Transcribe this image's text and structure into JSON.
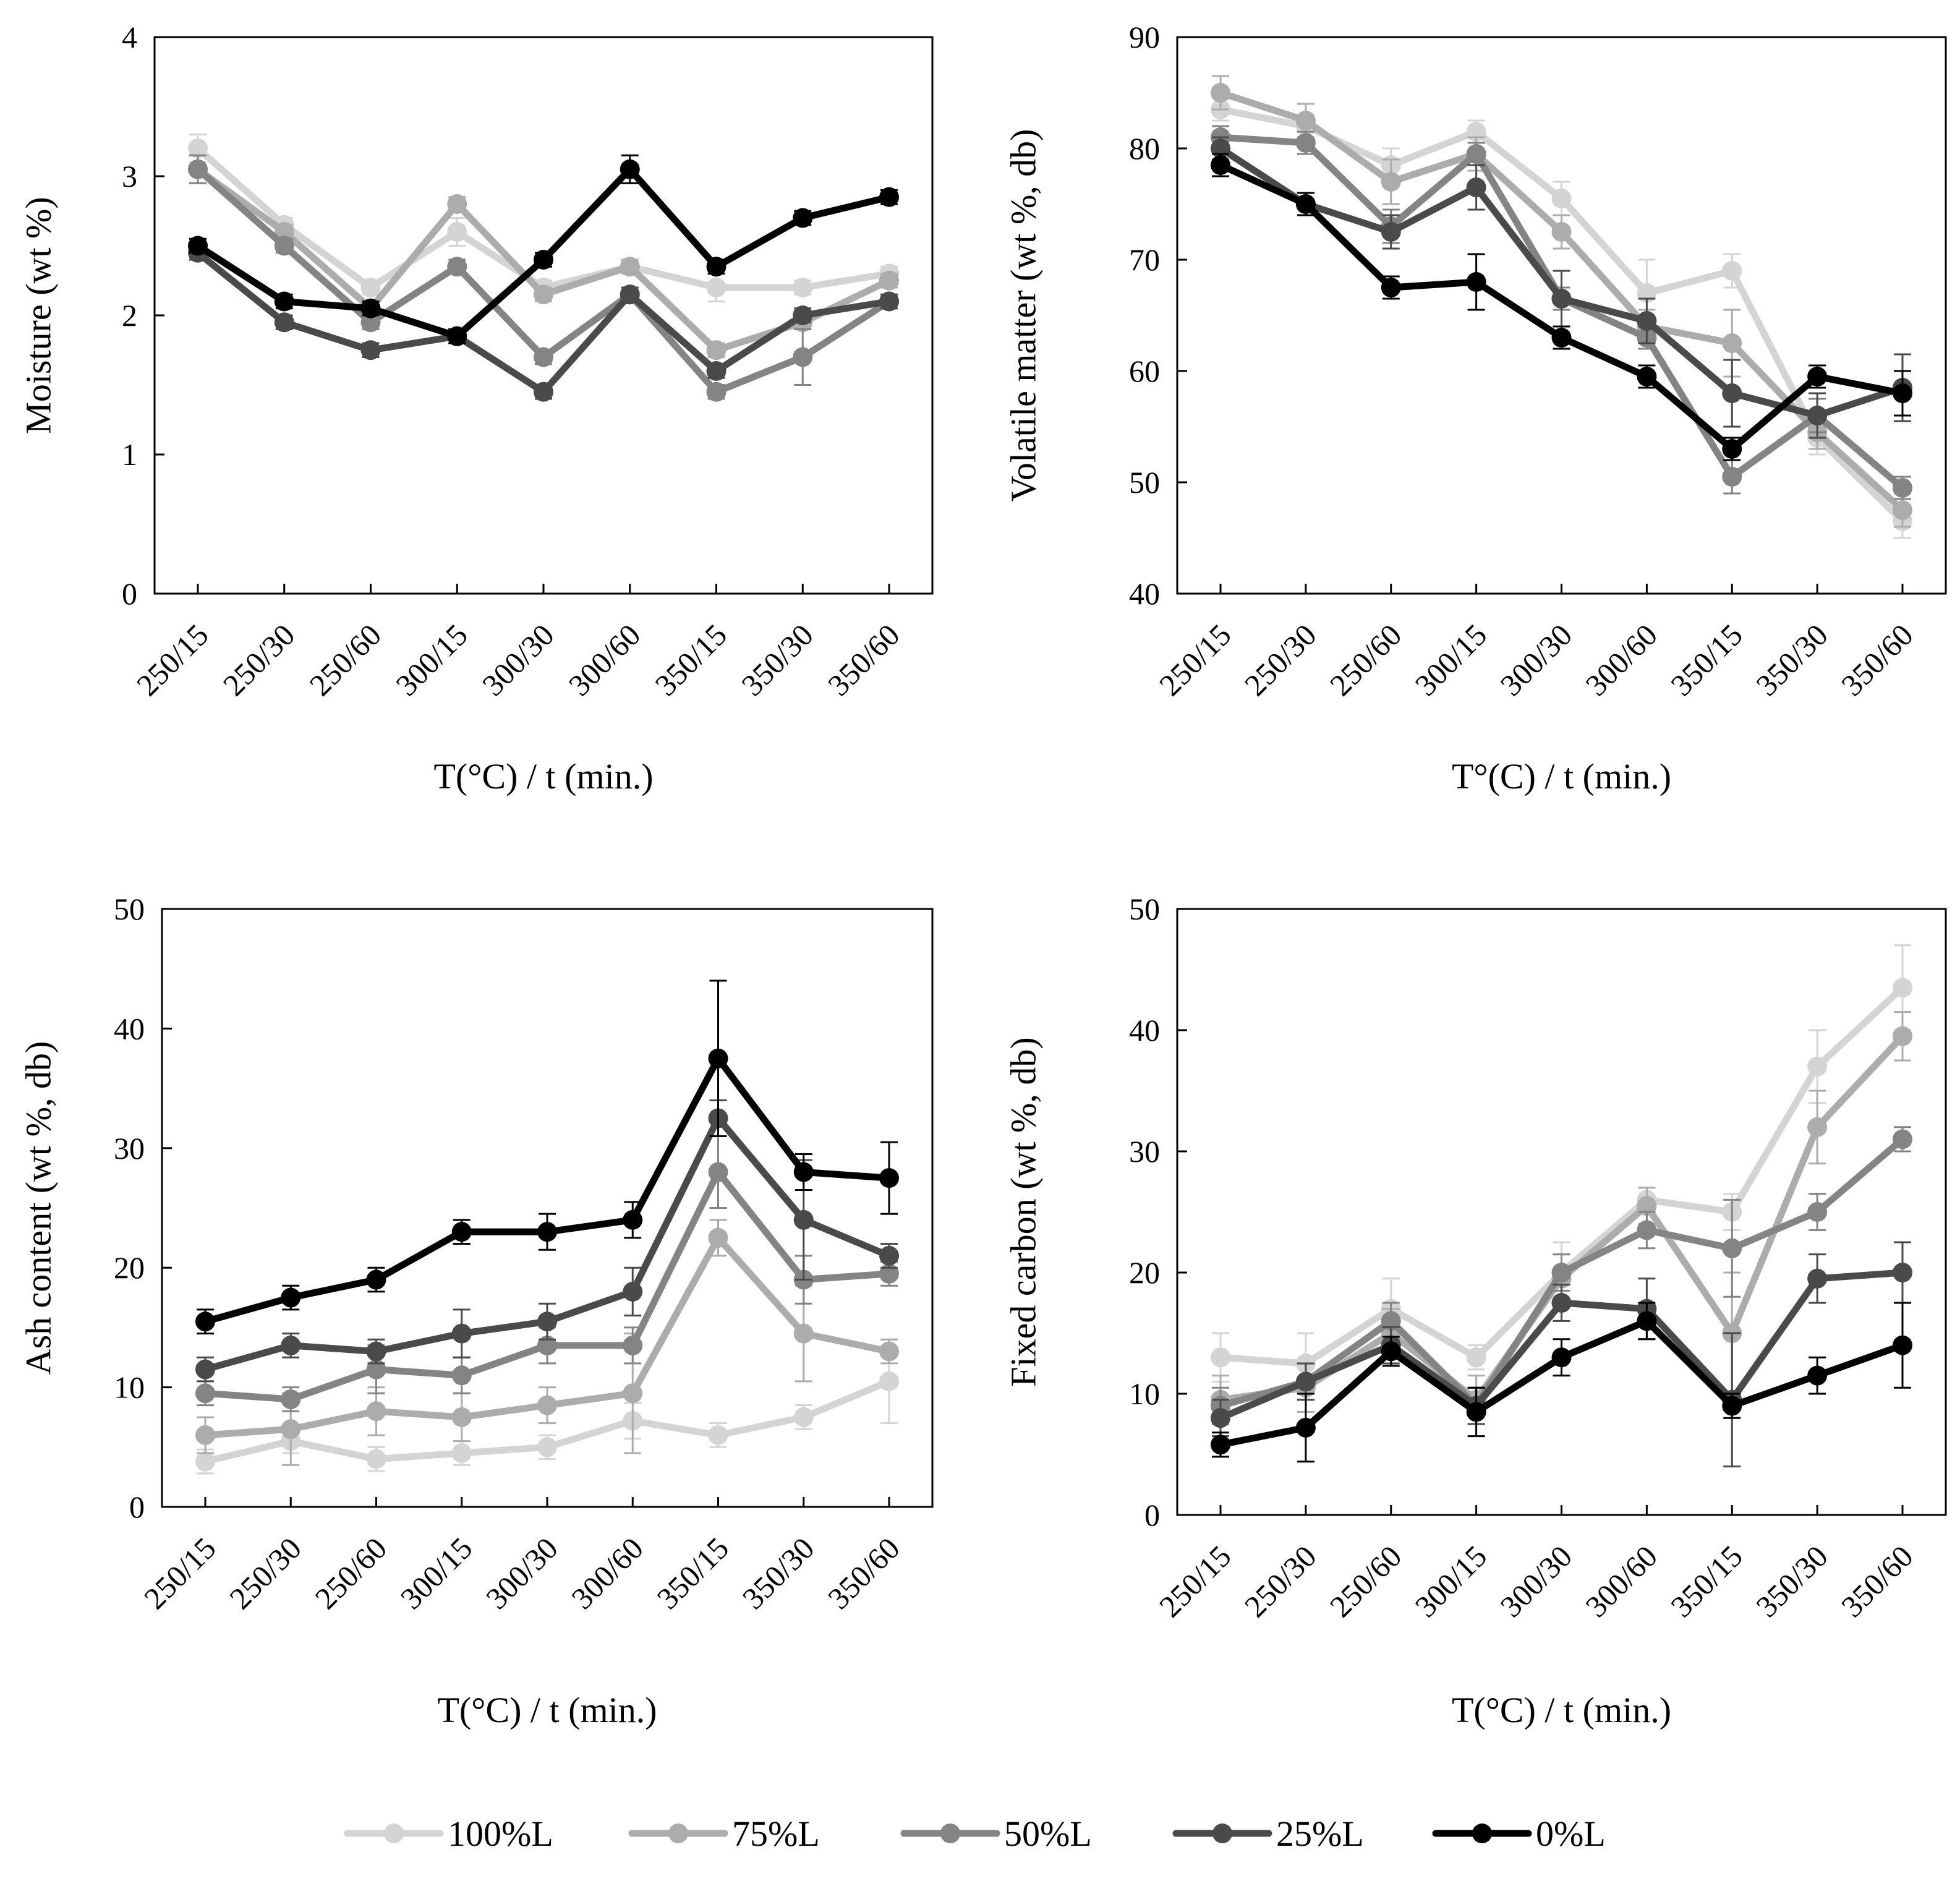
{
  "figure": {
    "legend_position": "bottom"
  },
  "legend": [
    {
      "name": "100%L",
      "color": "#d4d4d4"
    },
    {
      "name": "75%L",
      "color": "#acacac"
    },
    {
      "name": "50%L",
      "color": "#848484"
    },
    {
      "name": "25%L",
      "color": "#4a4a4a"
    },
    {
      "name": "0%L",
      "color": "#000000"
    }
  ],
  "chart_data": [
    {
      "type": "line",
      "position": "top-left",
      "title": "",
      "xlabel": "T(°C) / t (min.)",
      "ylabel": "Moisture (wt %)",
      "ylim": [
        0,
        4
      ],
      "yticks": [
        0,
        1,
        2,
        3,
        4
      ],
      "grid": false,
      "categories": [
        "250/15",
        "250/30",
        "250/60",
        "300/15",
        "300/30",
        "300/60",
        "350/15",
        "350/30",
        "350/60"
      ],
      "series": [
        {
          "name": "100%L",
          "color": "#d4d4d4",
          "values": [
            3.2,
            2.65,
            2.2,
            2.6,
            2.2,
            2.35,
            2.2,
            2.2,
            2.3
          ],
          "errors": [
            0.1,
            0.05,
            0.05,
            0.1,
            0.05,
            0.05,
            0.1,
            0.05,
            0.05
          ]
        },
        {
          "name": "75%L",
          "color": "#acacac",
          "values": [
            3.05,
            2.6,
            2.05,
            2.8,
            2.15,
            2.35,
            1.75,
            1.95,
            2.25
          ],
          "errors": [
            0.1,
            0.05,
            0.05,
            0.05,
            0.05,
            0.05,
            0.05,
            0.05,
            0.05
          ]
        },
        {
          "name": "50%L",
          "color": "#848484",
          "values": [
            3.05,
            2.5,
            1.95,
            2.35,
            1.7,
            2.15,
            1.45,
            1.7,
            2.1
          ],
          "errors": [
            0.1,
            0.05,
            0.05,
            0.05,
            0.05,
            0.05,
            0.05,
            0.2,
            0.05
          ]
        },
        {
          "name": "25%L",
          "color": "#4a4a4a",
          "values": [
            2.45,
            1.95,
            1.75,
            1.85,
            1.45,
            2.15,
            1.6,
            2.0,
            2.1
          ],
          "errors": [
            0.05,
            0.05,
            0.05,
            0.05,
            0.05,
            0.05,
            0.05,
            0.05,
            0.05
          ]
        },
        {
          "name": "0%L",
          "color": "#000000",
          "values": [
            2.5,
            2.1,
            2.05,
            1.85,
            2.4,
            3.05,
            2.35,
            2.7,
            2.85
          ],
          "errors": [
            0.05,
            0.05,
            0.05,
            0.05,
            0.05,
            0.1,
            0.05,
            0.05,
            0.05
          ]
        }
      ]
    },
    {
      "type": "line",
      "position": "top-right",
      "title": "",
      "xlabel": "T°(C) / t (min.)",
      "ylabel": "Volatile matter (wt %, db)",
      "ylim": [
        40,
        90
      ],
      "yticks": [
        40,
        50,
        60,
        70,
        80,
        90
      ],
      "grid": false,
      "categories": [
        "250/15",
        "250/30",
        "250/60",
        "300/15",
        "300/30",
        "300/60",
        "350/15",
        "350/30",
        "350/60"
      ],
      "series": [
        {
          "name": "100%L",
          "color": "#d4d4d4",
          "values": [
            83.5,
            82,
            78.5,
            81.5,
            75.5,
            67,
            69,
            54,
            46.5
          ],
          "errors": [
            1,
            1,
            1.5,
            1,
            1.5,
            3,
            1.5,
            1.5,
            1.5
          ]
        },
        {
          "name": "75%L",
          "color": "#acacac",
          "values": [
            85,
            82.5,
            77,
            79.5,
            72.5,
            64,
            62.5,
            54.5,
            47.5
          ],
          "errors": [
            1.5,
            1.5,
            2,
            1.5,
            1.5,
            1.5,
            3,
            1.5,
            1.5
          ]
        },
        {
          "name": "50%L",
          "color": "#848484",
          "values": [
            81,
            80.5,
            73,
            79.5,
            66.5,
            63,
            50.5,
            56,
            49.5
          ],
          "errors": [
            1,
            1,
            1.5,
            1,
            1,
            1,
            1.5,
            1.5,
            1
          ]
        },
        {
          "name": "25%L",
          "color": "#4a4a4a",
          "values": [
            80,
            75,
            72.5,
            76.5,
            66.5,
            64.5,
            58,
            56,
            58.5
          ],
          "errors": [
            1,
            1,
            1.5,
            2,
            2.5,
            2,
            3,
            2,
            3
          ]
        },
        {
          "name": "0%L",
          "color": "#000000",
          "values": [
            78.5,
            75,
            67.5,
            68,
            63,
            59.5,
            53,
            59.5,
            58
          ],
          "errors": [
            1,
            1,
            1,
            2.5,
            1,
            1,
            1,
            1,
            2
          ]
        }
      ]
    },
    {
      "type": "line",
      "position": "bottom-left",
      "title": "",
      "xlabel": "T(°C) / t (min.)",
      "ylabel": "Ash content (wt %, db)",
      "ylim": [
        0,
        50
      ],
      "yticks": [
        0,
        10,
        20,
        30,
        40,
        50
      ],
      "grid": false,
      "categories": [
        "250/15",
        "250/30",
        "250/60",
        "300/15",
        "300/30",
        "300/60",
        "350/15",
        "350/30",
        "350/60"
      ],
      "series": [
        {
          "name": "100%L",
          "color": "#d4d4d4",
          "values": [
            3.8,
            5.5,
            4,
            4.5,
            5,
            7.2,
            6,
            7.5,
            10.5
          ],
          "errors": [
            1,
            1,
            1,
            1,
            1,
            1.5,
            1,
            1,
            3.5
          ]
        },
        {
          "name": "75%L",
          "color": "#acacac",
          "values": [
            6,
            6.5,
            8,
            7.5,
            8.5,
            9.5,
            22.5,
            14.5,
            13
          ],
          "errors": [
            1.5,
            3,
            2,
            2,
            1.5,
            5,
            1.5,
            4,
            1
          ]
        },
        {
          "name": "50%L",
          "color": "#848484",
          "values": [
            9.5,
            9,
            11.5,
            11,
            13.5,
            13.5,
            28,
            19,
            19.5
          ],
          "errors": [
            1,
            1,
            2,
            1.5,
            1.5,
            1.5,
            3,
            2,
            1
          ]
        },
        {
          "name": "25%L",
          "color": "#4a4a4a",
          "values": [
            11.5,
            13.5,
            13,
            14.5,
            15.5,
            18,
            32.5,
            24,
            21
          ],
          "errors": [
            1,
            1,
            1,
            2,
            1.5,
            2,
            1.5,
            5,
            1
          ]
        },
        {
          "name": "0%L",
          "color": "#000000",
          "values": [
            15.5,
            17.5,
            19,
            23,
            23,
            24,
            37.5,
            28,
            27.5
          ],
          "errors": [
            1,
            1,
            1,
            1,
            1.5,
            1.5,
            6.5,
            1.5,
            3
          ]
        }
      ]
    },
    {
      "type": "line",
      "position": "bottom-right",
      "title": "",
      "xlabel": "T(°C) / t (min.)",
      "ylabel": "Fixed carbon (wt %, db)",
      "ylim": [
        0,
        50
      ],
      "yticks": [
        0,
        10,
        20,
        30,
        40,
        50
      ],
      "grid": false,
      "categories": [
        "250/15",
        "250/30",
        "250/60",
        "300/15",
        "300/30",
        "300/60",
        "350/15",
        "350/30",
        "350/60"
      ],
      "series": [
        {
          "name": "100%L",
          "color": "#d4d4d4",
          "values": [
            13,
            12.5,
            17,
            13,
            20,
            26,
            25,
            37,
            43.5
          ],
          "errors": [
            2,
            2.5,
            2.5,
            1,
            2.5,
            1,
            1.5,
            3,
            3.5
          ]
        },
        {
          "name": "75%L",
          "color": "#acacac",
          "values": [
            9.5,
            10.5,
            15,
            9.5,
            19.5,
            25.5,
            15,
            32,
            39.5
          ],
          "errors": [
            2,
            2,
            2,
            2,
            2,
            1.5,
            5,
            3,
            2
          ]
        },
        {
          "name": "50%L",
          "color": "#848484",
          "values": [
            9,
            11,
            16,
            9,
            20,
            23.5,
            22,
            25,
            31
          ],
          "errors": [
            1.5,
            1.5,
            1.5,
            1.5,
            1.5,
            1.5,
            4,
            1.5,
            1
          ]
        },
        {
          "name": "25%L",
          "color": "#4a4a4a",
          "values": [
            8,
            11,
            14,
            9,
            17.5,
            17,
            9.5,
            19.5,
            20
          ],
          "errors": [
            1.5,
            1.5,
            1.5,
            1.5,
            1.5,
            2.5,
            5.5,
            2,
            2.5
          ]
        },
        {
          "name": "0%L",
          "color": "#000000",
          "values": [
            5.8,
            7.2,
            13.5,
            8.5,
            13,
            16,
            9,
            11.5,
            14
          ],
          "errors": [
            1,
            2.8,
            1.2,
            2,
            1.5,
            1.5,
            1,
            1.5,
            3.5
          ]
        }
      ]
    }
  ]
}
